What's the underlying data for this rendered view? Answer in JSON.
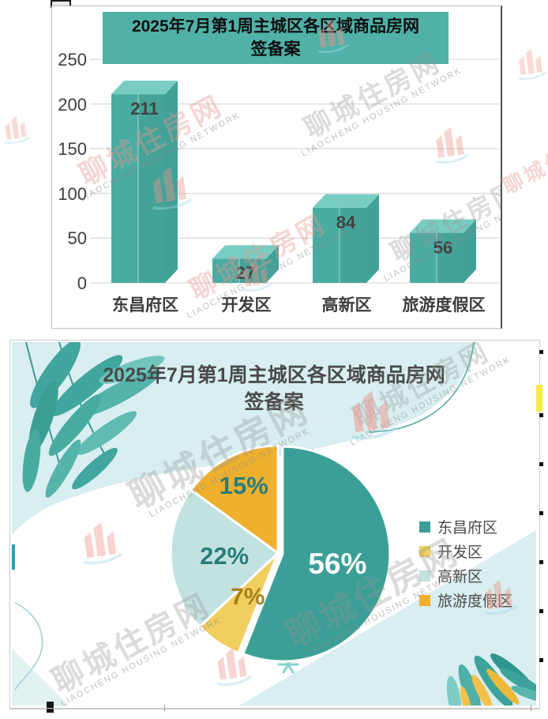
{
  "watermark": {
    "logo_text": "聊城住房网",
    "subtext": "LIAOCHENG HOUSING NETWORK"
  },
  "colors": {
    "bar_front": "#48aca2",
    "bar_top": "#78cdc3",
    "bar_side": "#41a198",
    "banner_bg": "#4fb1a8",
    "grid_line": "#d9d9d9",
    "card_teal": "#d8eef0",
    "highlight_strip": "#f4ec45"
  },
  "chart_data": [
    {
      "type": "bar",
      "title": "2025年7月第1周主城区各区域商品房网签备案",
      "title_lines": [
        "2025年7月第1周主城区各区域商品房网",
        "签备案"
      ],
      "categories": [
        "东昌府区",
        "开发区",
        "高新区",
        "旅游度假区"
      ],
      "values": [
        211,
        27,
        84,
        56
      ],
      "yticks": [
        250,
        200,
        150,
        100,
        50,
        0
      ],
      "ylim": [
        0,
        250
      ],
      "grid": true,
      "style": "3d-column",
      "xlabel": "",
      "ylabel": ""
    },
    {
      "type": "pie",
      "title": "2025年7月第1周主城区各区域商品房网签备案",
      "title_lines": [
        "2025年7月第1周主城区各区域商品房网",
        "签备案"
      ],
      "direction": "clockwise",
      "start_angle_deg": 0,
      "legend_position": "right",
      "slices": [
        {
          "label": "东昌府区",
          "pct": 56,
          "label_text": "56%",
          "color": "#3b9f97",
          "label_color": "#ffffff"
        },
        {
          "label": "开发区",
          "pct": 7,
          "label_text": "7%",
          "color": "#f0ce5f",
          "label_color": "#a5811c"
        },
        {
          "label": "高新区",
          "pct": 22,
          "label_text": "22%",
          "color": "#c2e2e0",
          "label_color": "#2b7d78"
        },
        {
          "label": "旅游度假区",
          "pct": 15,
          "label_text": "15%",
          "color": "#eeb02d",
          "label_color": "#2b7d78"
        }
      ]
    }
  ]
}
